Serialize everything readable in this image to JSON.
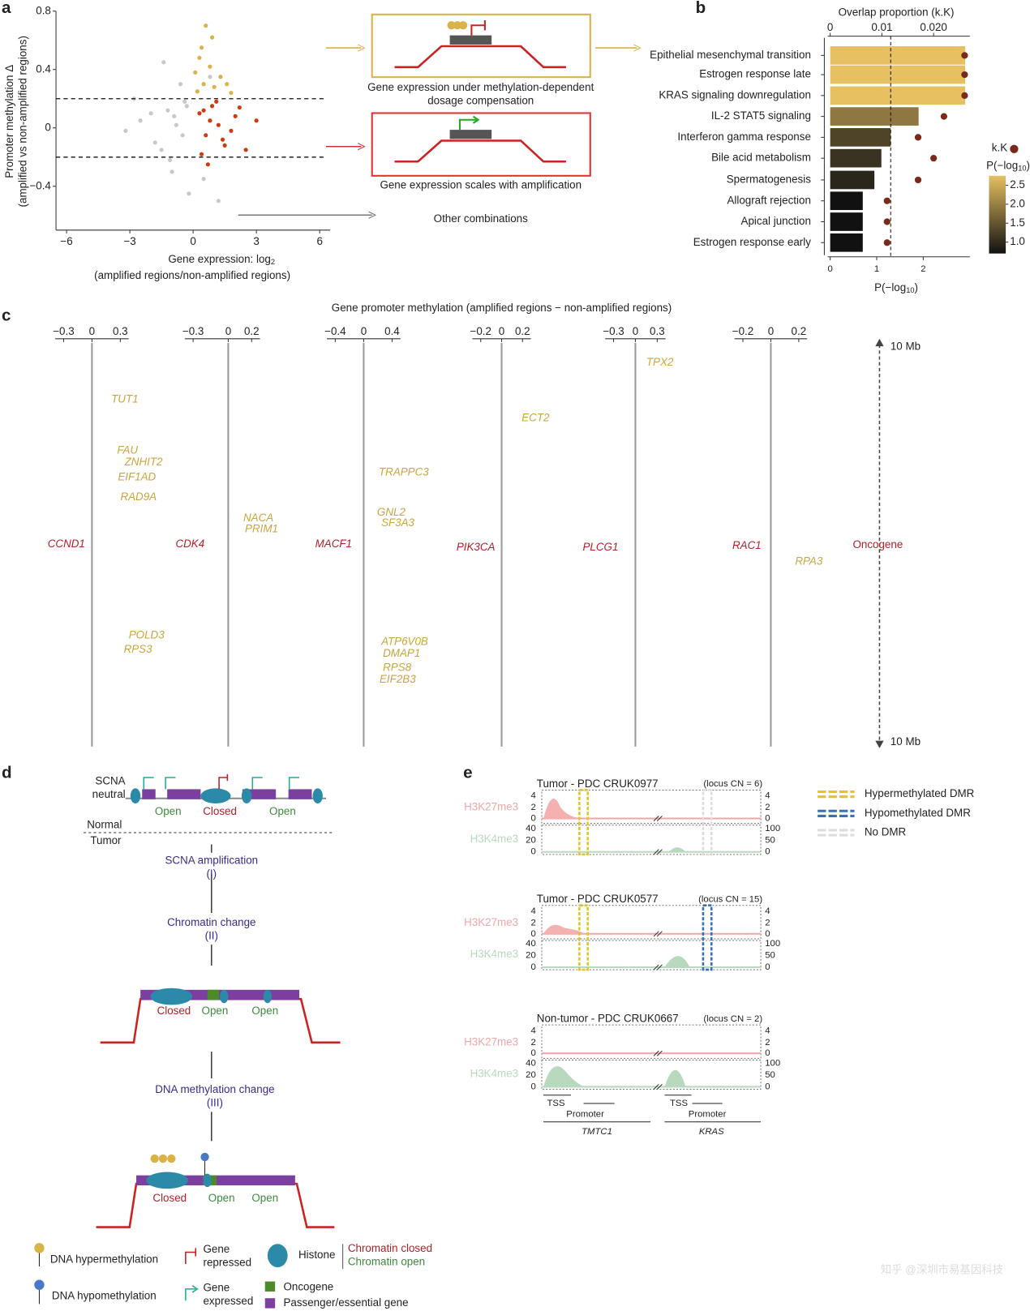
{
  "panel_labels": [
    "a",
    "b",
    "c",
    "d",
    "e"
  ],
  "chart_data": [
    {
      "type": "scatter",
      "y_label": [
        "Promoter methylation Δ",
        "(amplified vs non-amplified regions)"
      ],
      "x_label": "Gene expression: log",
      "x_label_sub": "2",
      "x_label_2": "(amplified regions/non-amplified regions)",
      "xlim": [
        -6.5,
        6.5
      ],
      "xticks": [
        {
          "value": -6,
          "label": "−6"
        },
        {
          "value": -3,
          "label": "−3"
        },
        0,
        3,
        6
      ],
      "ylim": [
        -0.7,
        0.8
      ],
      "yticks": [
        {
          "value": -0.4,
          "label": "−0.4"
        },
        0,
        0.4,
        0.8
      ],
      "hlines": [
        0.2,
        -0.2
      ],
      "series": [
        {
          "color": "#c8c8c8",
          "x": [
            -2.5,
            -1.8,
            -1.2,
            -0.8,
            -0.5,
            -0.3,
            -1.5,
            -2.0,
            -0.6,
            -1.0,
            -3.2,
            -0.2,
            -0.9,
            -1.4,
            0.5,
            1.2,
            -0.4,
            0.8,
            -2.8,
            -1.1
          ],
          "values": [
            0.05,
            -0.1,
            0.12,
            0.02,
            -0.05,
            0.15,
            -0.15,
            0.1,
            0.3,
            -0.3,
            -0.02,
            -0.45,
            0.08,
            0.45,
            -0.35,
            -0.5,
            0.18,
            0.35,
            0.2,
            -0.22
          ]
        },
        {
          "color": "#d03a10",
          "x": [
            0.3,
            0.6,
            0.9,
            1.2,
            1.5,
            2.0,
            2.5,
            0.4,
            0.8,
            1.1,
            1.8,
            3.0,
            0.5,
            1.4,
            2.2,
            0.7
          ],
          "values": [
            0.1,
            -0.05,
            0.15,
            0.02,
            -0.12,
            0.08,
            -0.15,
            -0.18,
            0.05,
            0.18,
            -0.02,
            0.05,
            0.12,
            -0.08,
            0.14,
            -0.25
          ]
        },
        {
          "color": "#d9b24a",
          "x": [
            0.2,
            0.5,
            0.8,
            1.0,
            1.3,
            0.4,
            0.9,
            1.6,
            0.1,
            0.6,
            1.8,
            0.3
          ],
          "values": [
            0.25,
            0.3,
            0.42,
            0.28,
            0.35,
            0.55,
            0.62,
            0.3,
            0.38,
            0.7,
            0.24,
            0.48
          ]
        }
      ],
      "boxes": {
        "dosage": [
          "Gene expression under methylation-dependent",
          "dosage compensation"
        ],
        "scales": "Gene expression scales with amplification",
        "other": "Other combinations"
      }
    },
    {
      "type": "hbar",
      "title": "Overlap proportion (k.K)",
      "categories": [
        "Epithelial mesenchymal transition",
        "Estrogen response late",
        "KRAS signaling downregulation",
        "IL-2 STAT5 signaling",
        "Interferon gamma response",
        "Bile acid metabolism",
        "Spermatogenesis",
        "Allograft rejection",
        "Apical junction",
        "Estrogen response early"
      ],
      "series": [
        {
          "values": [
            2.9,
            2.9,
            2.9,
            1.9,
            1.3,
            1.1,
            0.95,
            0.7,
            0.7,
            0.7
          ]
        },
        {
          "name": "k.K",
          "axis": "x2",
          "color": "#7a2a1a",
          "values": [
            0.026,
            0.026,
            0.026,
            0.022,
            0.017,
            0.02,
            0.017,
            0.011,
            0.011,
            0.011
          ]
        }
      ],
      "xlim": [
        0,
        3.0
      ],
      "xticks": [
        0,
        1,
        2
      ],
      "x2lim": [
        0,
        0.027
      ],
      "x2ticks": [
        0,
        0.01,
        {
          "value": 0.02,
          "label": "0.020"
        }
      ],
      "x_label": "P(−log",
      "x_label_sub": "10",
      "x_label_end": ")",
      "threshold": 1.3,
      "colorbar_label": "P(−log",
      "colorbar_label_sub": "10",
      "colorbar_label_end": ")",
      "clim": [
        0.7,
        2.75
      ],
      "colorbar_colors": [
        "#111111",
        "#e6c061"
      ],
      "cticks": [
        {
          "value": 1,
          "label": "1.0"
        },
        1.5,
        {
          "value": 2,
          "label": "2.0"
        },
        2.5
      ]
    }
  ],
  "panel_c": {
    "title": "Gene promoter methylation (amplified regions − non-amplified regions)",
    "plots": [
      {
        "ticks": [
          {
            "value": -0.3,
            "label": "−0.3"
          },
          0,
          0.3
        ],
        "oncogene": "CCND1",
        "genes": [
          "TUT1",
          "FAU",
          "ZNHIT2",
          "EIF1AD",
          "RAD9A",
          "POLD3",
          "RPS3"
        ]
      },
      {
        "ticks": [
          {
            "value": -0.3,
            "label": "−0.3"
          },
          0,
          0.2
        ],
        "oncogene": "CDK4",
        "genes": [
          "NACA",
          "PRIM1"
        ]
      },
      {
        "ticks": [
          {
            "value": -0.4,
            "label": "−0.4"
          },
          0,
          0.4
        ],
        "oncogene": "MACF1",
        "genes": [
          "TRAPPC3",
          "GNL2",
          "SF3A3",
          "ATP6V0B",
          "DMAP1",
          "RPS8",
          "EIF2B3"
        ]
      },
      {
        "ticks": [
          {
            "value": -0.2,
            "label": "−0.2"
          },
          0,
          0.2
        ],
        "oncogene": "PIK3CA",
        "genes": [
          "ECT2"
        ]
      },
      {
        "ticks": [
          {
            "value": -0.3,
            "label": "−0.3"
          },
          0,
          0.3
        ],
        "oncogene": "PLCG1",
        "genes": [
          "TPX2"
        ]
      },
      {
        "ticks": [
          {
            "value": -0.2,
            "label": "−0.2"
          },
          0,
          0.2
        ],
        "oncogene": "RAC1",
        "genes": [
          "RPA3"
        ]
      }
    ],
    "scale_top": "10 Mb",
    "scale_bottom": "10 Mb",
    "oncogene_label": "Oncogene"
  },
  "panel_d": {
    "scna": [
      "SCNA",
      "neutral"
    ],
    "states_1": [
      "Open",
      "Closed",
      "Open"
    ],
    "normal": "Normal",
    "tumor": "Tumor",
    "step_1": [
      "SCNA amplification",
      "(I)"
    ],
    "step_2": [
      "Chromatin change",
      "(II)"
    ],
    "states_2": [
      "Closed",
      "Open",
      "Open"
    ],
    "step_3": [
      "DNA methylation change",
      "(III)"
    ],
    "states_3": [
      "Closed",
      "Open",
      "Open"
    ]
  },
  "legend_d": {
    "hyper": "DNA hypermethylation",
    "hypo": "DNA hypomethylation",
    "repressed": [
      "Gene",
      "repressed"
    ],
    "expressed": [
      "Gene",
      "expressed"
    ],
    "histone": "Histone",
    "closed": "Chromatin closed",
    "open": "Chromatin open",
    "oncogene": "Oncogene",
    "passenger": "Passenger/essential gene"
  },
  "panel_e": {
    "tracks": [
      {
        "title": "Tumor - PDC CRUK0977",
        "locus": "(locus CN = 6)"
      },
      {
        "title": "Tumor - PDC CRUK0577",
        "locus": "(locus CN = 15)"
      },
      {
        "title": "Non-tumor - PDC CRUK0667",
        "locus": "(locus CN = 2)"
      }
    ],
    "marks": [
      "H3K27me3",
      "H3K4me3"
    ],
    "left_ticks": [
      [
        4,
        2,
        0
      ],
      [
        40,
        20,
        0
      ]
    ],
    "right_ticks": [
      [
        4,
        2,
        0
      ],
      [
        100,
        50,
        0
      ]
    ],
    "legend": [
      "Hypermethylated DMR",
      "Hypomethylated DMR",
      "No DMR"
    ],
    "bottom": [
      "TSS",
      "Promoter",
      "TMTC1",
      "TSS",
      "Promoter",
      "KRAS"
    ]
  },
  "watermark": "知乎 @深圳市易基因科技"
}
